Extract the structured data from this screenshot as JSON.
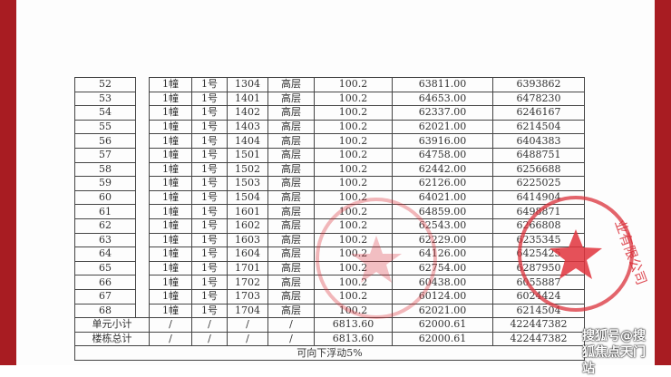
{
  "rows": [
    [
      "52",
      "1幢",
      "1号",
      "1304",
      "高层",
      "100.2",
      "63811.00",
      "6393862"
    ],
    [
      "53",
      "1幢",
      "1号",
      "1401",
      "高层",
      "100.2",
      "64653.00",
      "6478230"
    ],
    [
      "54",
      "1幢",
      "1号",
      "1402",
      "高层",
      "100.2",
      "62337.00",
      "6246167"
    ],
    [
      "55",
      "1幢",
      "1号",
      "1403",
      "高层",
      "100.2",
      "62021.00",
      "6214504"
    ],
    [
      "56",
      "1幢",
      "1号",
      "1404",
      "高层",
      "100.2",
      "63916.00",
      "6404383"
    ],
    [
      "57",
      "1幢",
      "1号",
      "1501",
      "高层",
      "100.2",
      "64758.00",
      "6488751"
    ],
    [
      "58",
      "1幢",
      "1号",
      "1502",
      "高层",
      "100.2",
      "62442.00",
      "6256688"
    ],
    [
      "59",
      "1幢",
      "1号",
      "1503",
      "高层",
      "100.2",
      "62126.00",
      "6225025"
    ],
    [
      "60",
      "1幢",
      "1号",
      "1504",
      "高层",
      "100.2",
      "64021.00",
      "6414904"
    ],
    [
      "61",
      "1幢",
      "1号",
      "1601",
      "高层",
      "100.2",
      "64859.00",
      "6498871"
    ],
    [
      "62",
      "1幢",
      "1号",
      "1602",
      "高层",
      "100.2",
      "62543.00",
      "6266808"
    ],
    [
      "63",
      "1幢",
      "1号",
      "1603",
      "高层",
      "100.2",
      "62229.00",
      "6235345"
    ],
    [
      "64",
      "1幢",
      "1号",
      "1604",
      "高层",
      "100.2",
      "64126.00",
      "6425425"
    ],
    [
      "65",
      "1幢",
      "1号",
      "1701",
      "高层",
      "100.2",
      "62754.00",
      "6287950"
    ],
    [
      "66",
      "1幢",
      "1号",
      "1702",
      "高层",
      "100.2",
      "60438.00",
      "6055887"
    ],
    [
      "67",
      "1幢",
      "1号",
      "1703",
      "高层",
      "100.2",
      "60124.00",
      "6024424"
    ],
    [
      "68",
      "1幢",
      "1号",
      "1704",
      "高层",
      "100.2",
      "62021.00",
      "6214504"
    ]
  ],
  "subtotal": [
    "单元小计",
    "/",
    "/",
    "/",
    "/",
    "6813.60",
    "62000.61",
    "422447382"
  ],
  "total": [
    "楼栋总计",
    "/",
    "/",
    "/",
    "/",
    "6813.60",
    "62000.61",
    "422447382"
  ],
  "note": "可向下浮动5%",
  "stamp_text": "业有限公司",
  "watermark": "搜狐号@搜狐焦点天门站",
  "colors": {
    "stamp": "#d9303a",
    "frame": "#a81c22"
  }
}
